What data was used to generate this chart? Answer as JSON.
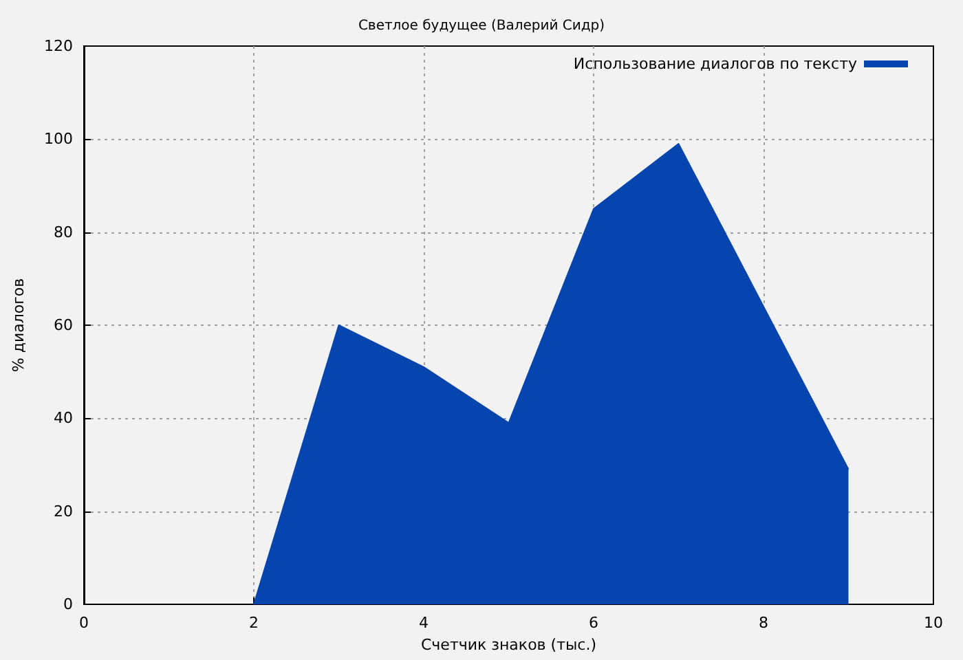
{
  "chart_data": {
    "type": "area",
    "title": "Светлое будущее (Валерий Сидр)",
    "xlabel": "Счетчик знаков (тыс.)",
    "ylabel": "% диалогов",
    "x": [
      2,
      3,
      4,
      5,
      6,
      7,
      8,
      9
    ],
    "series": [
      {
        "name": "Использование диалогов по тексту",
        "color": "#0645ad",
        "values": [
          0,
          60,
          51,
          39,
          85,
          99,
          64,
          29
        ]
      }
    ],
    "xlim": [
      0,
      10
    ],
    "ylim": [
      0,
      120
    ],
    "xticks": [
      0,
      2,
      4,
      6,
      8,
      10
    ],
    "yticks": [
      0,
      20,
      40,
      60,
      80,
      100,
      120
    ],
    "grid": true,
    "legend": "top right"
  }
}
